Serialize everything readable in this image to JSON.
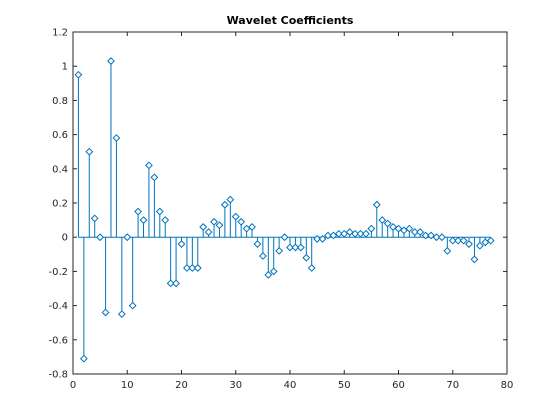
{
  "chart_data": {
    "type": "stem",
    "title": "Wavelet Coefficients",
    "xlabel": "",
    "ylabel": "",
    "xlim": [
      0,
      80
    ],
    "ylim": [
      -0.8,
      1.2
    ],
    "xticks": [
      0,
      10,
      20,
      30,
      40,
      50,
      60,
      70,
      80
    ],
    "yticks": [
      -0.8,
      -0.6,
      -0.4,
      -0.2,
      0,
      0.2,
      0.4,
      0.6,
      0.8,
      1,
      1.2
    ],
    "xtick_labels": [
      "0",
      "10",
      "20",
      "30",
      "40",
      "50",
      "60",
      "70",
      "80"
    ],
    "ytick_labels": [
      "-0.8",
      "-0.6",
      "-0.4",
      "-0.2",
      "0",
      "0.2",
      "0.4",
      "0.6",
      "0.8",
      "1",
      "1.2"
    ],
    "grid": false,
    "box": true,
    "marker": "diamond",
    "color": "#0072bd",
    "x": [
      1,
      2,
      3,
      4,
      5,
      6,
      7,
      8,
      9,
      10,
      11,
      12,
      13,
      14,
      15,
      16,
      17,
      18,
      19,
      20,
      21,
      22,
      23,
      24,
      25,
      26,
      27,
      28,
      29,
      30,
      31,
      32,
      33,
      34,
      35,
      36,
      37,
      38,
      39,
      40,
      41,
      42,
      43,
      44,
      45,
      46,
      47,
      48,
      49,
      50,
      51,
      52,
      53,
      54,
      55,
      56,
      57,
      58,
      59,
      60,
      61,
      62,
      63,
      64,
      65,
      66,
      67,
      68,
      69,
      70,
      71,
      72,
      73,
      74,
      75,
      76,
      77
    ],
    "values": [
      0.95,
      -0.71,
      0.5,
      0.11,
      0.0,
      -0.44,
      1.03,
      0.58,
      -0.45,
      0.0,
      -0.4,
      0.15,
      0.1,
      0.42,
      0.35,
      0.15,
      0.1,
      -0.27,
      -0.27,
      -0.04,
      -0.18,
      -0.18,
      -0.18,
      0.06,
      0.03,
      0.09,
      0.07,
      0.19,
      0.22,
      0.12,
      0.09,
      0.05,
      0.06,
      -0.04,
      -0.11,
      -0.22,
      -0.2,
      -0.08,
      0.0,
      -0.06,
      -0.06,
      -0.06,
      -0.12,
      -0.18,
      -0.01,
      -0.01,
      0.01,
      0.01,
      0.02,
      0.02,
      0.03,
      0.02,
      0.02,
      0.02,
      0.05,
      0.19,
      0.1,
      0.08,
      0.06,
      0.05,
      0.04,
      0.05,
      0.03,
      0.03,
      0.01,
      0.01,
      0.0,
      0.0,
      -0.08,
      -0.02,
      -0.02,
      -0.02,
      -0.04,
      -0.13,
      -0.05,
      -0.03,
      -0.02
    ]
  }
}
